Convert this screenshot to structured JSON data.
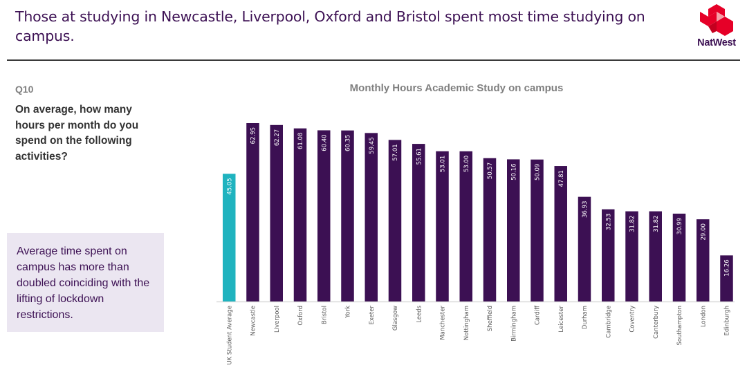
{
  "header": {
    "headline": "Those at studying in Newcastle, Liverpool, Oxford and Bristol spent most time studying on campus.",
    "logo_text": "NatWest",
    "logo_icon": "natwest-cubes-icon",
    "brand_color": "#3c1053",
    "logo_color": "#e60028"
  },
  "sidebar": {
    "question_number": "Q10",
    "question_text": "On average, how many hours per month do you spend on the following activities?",
    "callout_text": "Average time spent on campus has more than doubled coinciding with the lifting of lockdown restrictions."
  },
  "chart_data": {
    "type": "bar",
    "title": "Monthly Hours Academic Study on campus",
    "xlabel": "",
    "ylabel": "",
    "ylim": [
      0,
      65
    ],
    "grid": false,
    "legend": "none",
    "label_orientation": "vertical",
    "categories": [
      "UK Student Average",
      "Newcastle",
      "Liverpool",
      "Oxford",
      "Bristol",
      "York",
      "Exeter",
      "Glasgow",
      "Leeds",
      "Manchester",
      "Nottingham",
      "Sheffield",
      "Birmingham",
      "Cardiff",
      "Leicester",
      "Durham",
      "Cambridge",
      "Coventry",
      "Canterbury",
      "Southampton",
      "London",
      "Edinburgh"
    ],
    "values": [
      45.05,
      62.95,
      62.27,
      61.08,
      60.4,
      60.35,
      59.45,
      57.01,
      55.61,
      53.01,
      53.0,
      50.57,
      50.16,
      50.09,
      47.81,
      36.93,
      32.53,
      31.82,
      31.82,
      30.99,
      29.0,
      16.26
    ],
    "value_labels": [
      "45.05",
      "62.95",
      "62.27",
      "61.08",
      "60.40",
      "60.35",
      "59.45",
      "57.01",
      "55.61",
      "53.01",
      "53.00",
      "50.57",
      "50.16",
      "50.09",
      "47.81",
      "36.93",
      "32.53",
      "31.82",
      "31.82",
      "30.99",
      "29.00",
      "16.26"
    ],
    "colors": {
      "highlight": "#1fb3bf",
      "default": "#3c1053",
      "axis": "#d9d9d9"
    },
    "highlight_index": 0
  }
}
